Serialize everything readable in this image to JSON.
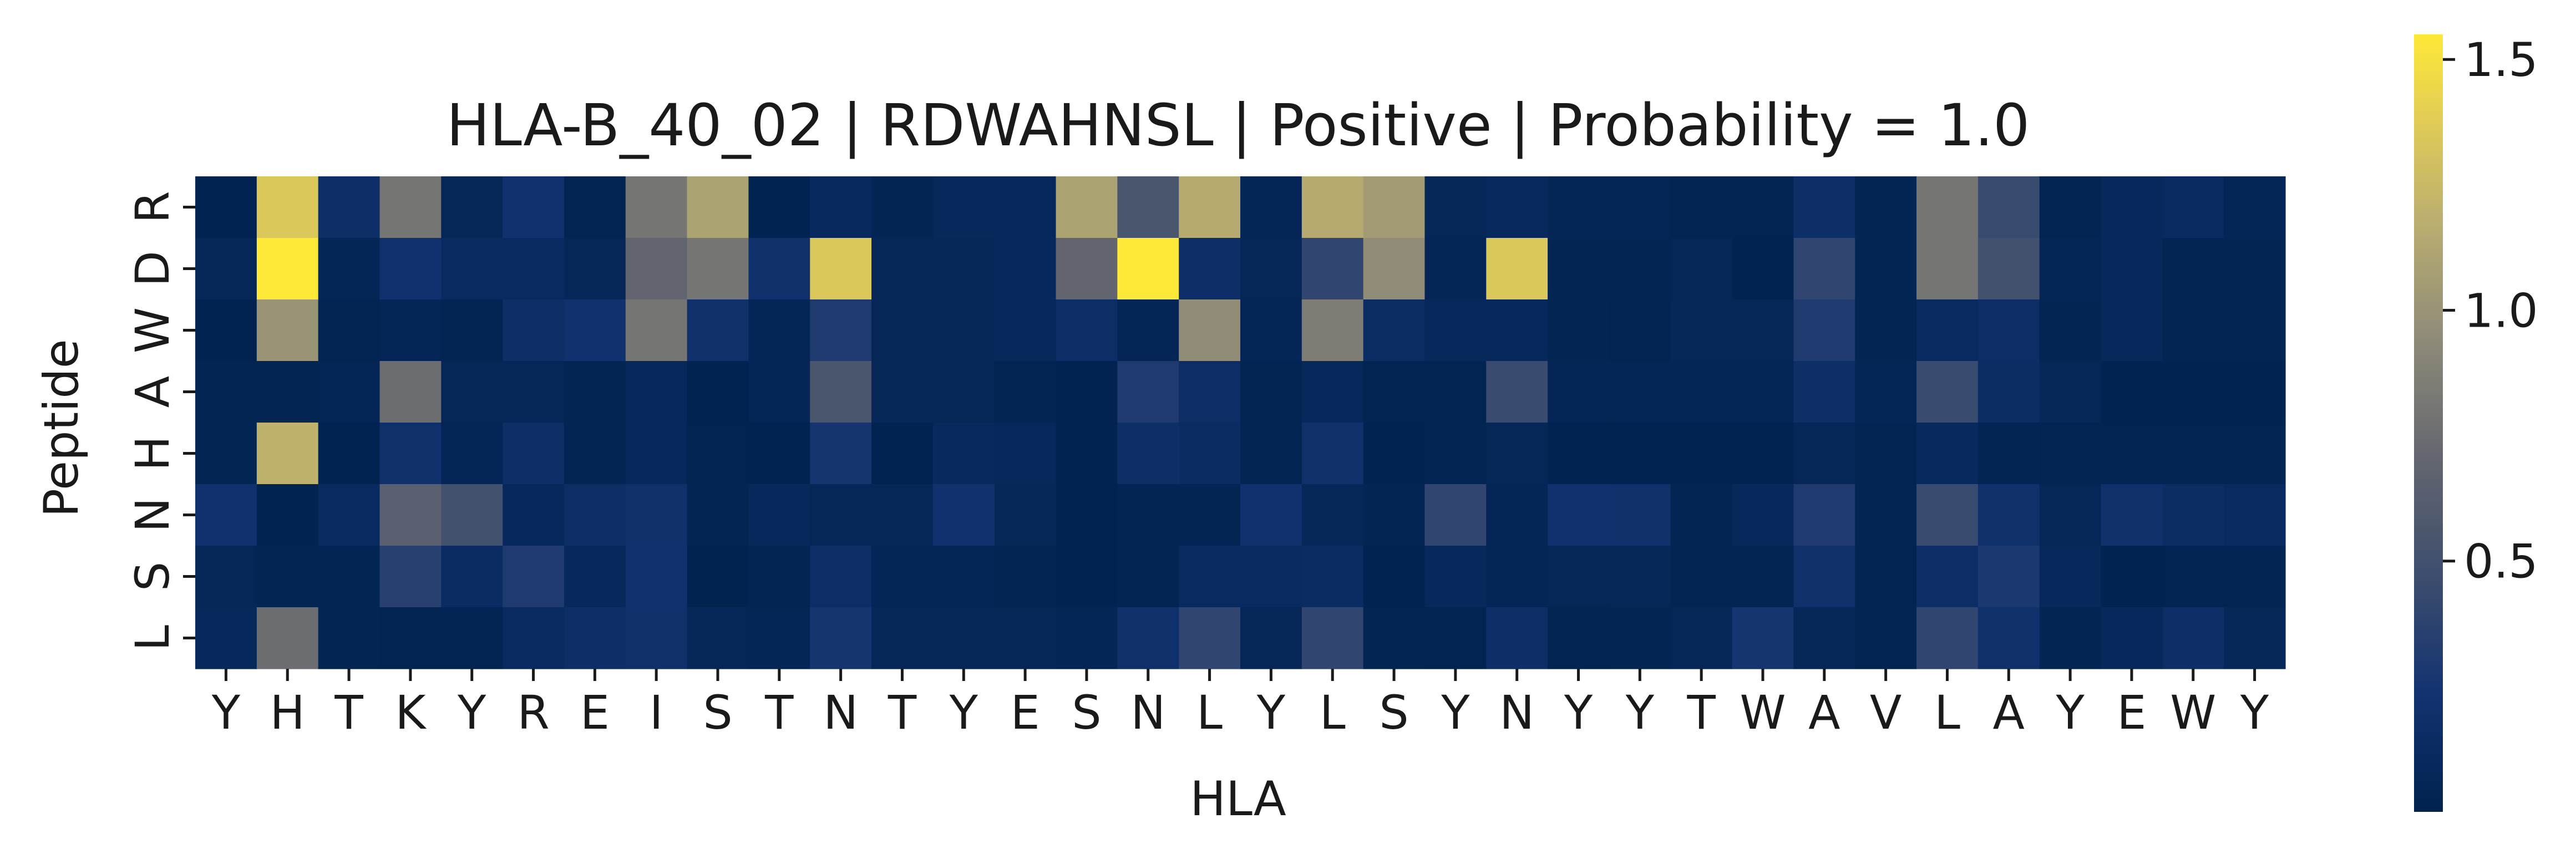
{
  "chart_data": {
    "type": "heatmap",
    "title": "HLA-B_40_02 | RDWAHNSL | Positive | Probability = 1.0",
    "xlabel": "HLA",
    "ylabel": "Peptide",
    "x_categories": [
      "Y",
      "H",
      "T",
      "K",
      "Y",
      "R",
      "E",
      "I",
      "S",
      "T",
      "N",
      "T",
      "Y",
      "E",
      "S",
      "N",
      "L",
      "Y",
      "L",
      "S",
      "Y",
      "N",
      "Y",
      "Y",
      "T",
      "W",
      "A",
      "V",
      "L",
      "A",
      "Y",
      "E",
      "W",
      "Y"
    ],
    "y_categories": [
      "R",
      "D",
      "W",
      "A",
      "H",
      "N",
      "S",
      "L"
    ],
    "values": [
      [
        0.02,
        1.35,
        0.18,
        0.8,
        0.06,
        0.22,
        0.03,
        0.8,
        1.1,
        0.02,
        0.1,
        0.04,
        0.08,
        0.08,
        1.1,
        0.55,
        1.15,
        0.05,
        1.15,
        1.05,
        0.06,
        0.1,
        0.05,
        0.05,
        0.03,
        0.03,
        0.18,
        0.04,
        0.8,
        0.45,
        0.03,
        0.08,
        0.12,
        0.05
      ],
      [
        0.06,
        1.55,
        0.05,
        0.22,
        0.12,
        0.12,
        0.06,
        0.7,
        0.8,
        0.2,
        1.35,
        0.06,
        0.06,
        0.08,
        0.7,
        1.55,
        0.18,
        0.06,
        0.4,
        0.95,
        0.05,
        1.35,
        0.04,
        0.04,
        0.06,
        0.02,
        0.4,
        0.04,
        0.8,
        0.5,
        0.05,
        0.08,
        0.04,
        0.04
      ],
      [
        0.02,
        1.0,
        0.03,
        0.05,
        0.03,
        0.18,
        0.22,
        0.8,
        0.2,
        0.05,
        0.3,
        0.06,
        0.06,
        0.08,
        0.16,
        0.05,
        0.95,
        0.05,
        0.85,
        0.15,
        0.08,
        0.08,
        0.04,
        0.03,
        0.06,
        0.06,
        0.3,
        0.04,
        0.12,
        0.16,
        0.04,
        0.08,
        0.04,
        0.04
      ],
      [
        0.04,
        0.04,
        0.05,
        0.75,
        0.06,
        0.06,
        0.04,
        0.08,
        0.02,
        0.05,
        0.55,
        0.06,
        0.06,
        0.04,
        0.02,
        0.3,
        0.16,
        0.03,
        0.08,
        0.03,
        0.03,
        0.45,
        0.05,
        0.05,
        0.05,
        0.05,
        0.18,
        0.05,
        0.45,
        0.15,
        0.06,
        0.02,
        0.02,
        0.02
      ],
      [
        0.04,
        1.2,
        0.02,
        0.2,
        0.05,
        0.16,
        0.04,
        0.08,
        0.03,
        0.02,
        0.25,
        0.02,
        0.1,
        0.08,
        0.02,
        0.18,
        0.14,
        0.04,
        0.2,
        0.02,
        0.04,
        0.06,
        0.02,
        0.02,
        0.02,
        0.02,
        0.06,
        0.03,
        0.1,
        0.04,
        0.03,
        0.03,
        0.03,
        0.03
      ],
      [
        0.22,
        0.02,
        0.12,
        0.65,
        0.5,
        0.08,
        0.16,
        0.2,
        0.04,
        0.08,
        0.06,
        0.06,
        0.22,
        0.06,
        0.02,
        0.04,
        0.04,
        0.22,
        0.06,
        0.04,
        0.4,
        0.05,
        0.22,
        0.2,
        0.04,
        0.08,
        0.3,
        0.04,
        0.45,
        0.2,
        0.06,
        0.2,
        0.15,
        0.12
      ],
      [
        0.06,
        0.04,
        0.04,
        0.35,
        0.14,
        0.3,
        0.08,
        0.22,
        0.01,
        0.04,
        0.16,
        0.05,
        0.05,
        0.04,
        0.02,
        0.04,
        0.12,
        0.12,
        0.14,
        0.02,
        0.08,
        0.05,
        0.06,
        0.06,
        0.03,
        0.04,
        0.2,
        0.03,
        0.16,
        0.28,
        0.08,
        0.02,
        0.03,
        0.04
      ],
      [
        0.08,
        0.75,
        0.04,
        0.03,
        0.03,
        0.12,
        0.16,
        0.2,
        0.06,
        0.05,
        0.25,
        0.06,
        0.06,
        0.06,
        0.05,
        0.2,
        0.4,
        0.06,
        0.4,
        0.04,
        0.03,
        0.18,
        0.03,
        0.04,
        0.06,
        0.25,
        0.06,
        0.03,
        0.4,
        0.2,
        0.04,
        0.08,
        0.16,
        0.07
      ]
    ],
    "colorbar": {
      "min": 0.0,
      "max": 1.55,
      "ticks": [
        0.5,
        1.0,
        1.5
      ],
      "tick_labels": [
        "0.5",
        "1.0",
        "1.5"
      ]
    },
    "colormap": "cividis",
    "grid": false
  }
}
